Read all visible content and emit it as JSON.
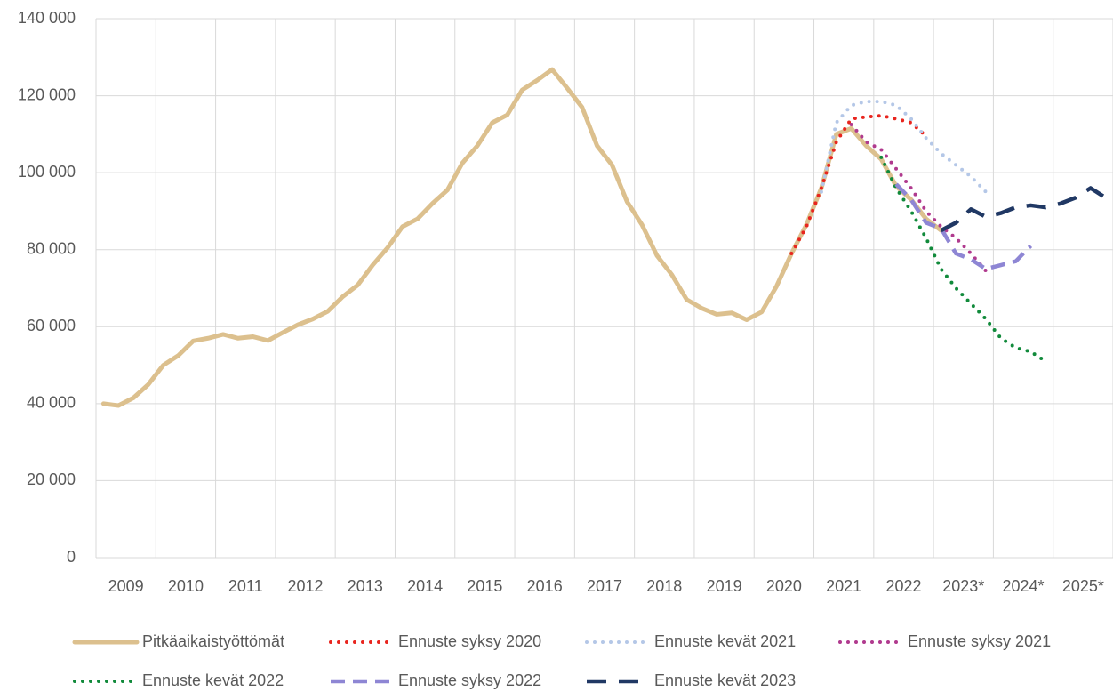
{
  "chart_data": {
    "type": "line",
    "x": [
      2009.125,
      2009.375,
      2009.625,
      2009.875,
      2010.125,
      2010.375,
      2010.625,
      2010.875,
      2011.125,
      2011.375,
      2011.625,
      2011.875,
      2012.125,
      2012.375,
      2012.625,
      2012.875,
      2013.125,
      2013.375,
      2013.625,
      2013.875,
      2014.125,
      2014.375,
      2014.625,
      2014.875,
      2015.125,
      2015.375,
      2015.625,
      2015.875,
      2016.125,
      2016.375,
      2016.625,
      2016.875,
      2017.125,
      2017.375,
      2017.625,
      2017.875,
      2018.125,
      2018.375,
      2018.625,
      2018.875,
      2019.125,
      2019.375,
      2019.625,
      2019.875,
      2020.125,
      2020.375,
      2020.625,
      2020.875,
      2021.125,
      2021.375,
      2021.625,
      2021.875,
      2022.125,
      2022.375,
      2022.625,
      2022.875,
      2023.125,
      2023.375,
      2023.625,
      2023.875,
      2024.125,
      2024.375,
      2024.625,
      2024.875,
      2025.125,
      2025.375,
      2025.625,
      2025.875
    ],
    "xlim": [
      2009,
      2026
    ],
    "xticks": [
      {
        "value": 2009.5,
        "label": "2009"
      },
      {
        "value": 2010.5,
        "label": "2010"
      },
      {
        "value": 2011.5,
        "label": "2011"
      },
      {
        "value": 2012.5,
        "label": "2012"
      },
      {
        "value": 2013.5,
        "label": "2013"
      },
      {
        "value": 2014.5,
        "label": "2014"
      },
      {
        "value": 2015.5,
        "label": "2015"
      },
      {
        "value": 2016.5,
        "label": "2016"
      },
      {
        "value": 2017.5,
        "label": "2017"
      },
      {
        "value": 2018.5,
        "label": "2018"
      },
      {
        "value": 2019.5,
        "label": "2019"
      },
      {
        "value": 2020.5,
        "label": "2020"
      },
      {
        "value": 2021.5,
        "label": "2021"
      },
      {
        "value": 2022.5,
        "label": "2022"
      },
      {
        "value": 2023.5,
        "label": "2023*"
      },
      {
        "value": 2024.5,
        "label": "2024*"
      },
      {
        "value": 2025.5,
        "label": "2025*"
      }
    ],
    "ylim": [
      0,
      140000
    ],
    "yticks": [
      0,
      {
        "value": 20000,
        "label": "20 000"
      },
      {
        "value": 40000,
        "label": "40 000"
      },
      {
        "value": 60000,
        "label": "60 000"
      },
      {
        "value": 80000,
        "label": "80 000"
      },
      {
        "value": 100000,
        "label": "100 000"
      },
      {
        "value": 120000,
        "label": "120 000"
      },
      {
        "value": 140000,
        "label": "140 000"
      }
    ],
    "grid": true,
    "legend": "bottom",
    "series": [
      {
        "name": "Pitkäaikaistyöttömät",
        "color": "#dcc08e",
        "style": "solid",
        "values": [
          40000,
          39500,
          41500,
          45000,
          50000,
          52500,
          56300,
          57000,
          58000,
          57000,
          57400,
          56400,
          58500,
          60500,
          62000,
          64000,
          67800,
          70800,
          76000,
          80500,
          86000,
          88000,
          92000,
          95500,
          102500,
          107000,
          113000,
          115000,
          121500,
          124000,
          126800,
          122000,
          117000,
          107000,
          102000,
          92500,
          86500,
          78500,
          73500,
          67000,
          64800,
          63200,
          63600,
          61800,
          63800,
          70500,
          79000,
          86500,
          96000,
          110000,
          111500,
          107000,
          103500,
          96500,
          93000,
          88000,
          85000,
          null,
          null,
          null,
          null,
          null,
          null,
          null,
          null,
          null,
          null,
          null
        ]
      },
      {
        "name": "Ennuste syksy 2020",
        "color": "#e8251e",
        "style": "dotted",
        "values": [
          null,
          null,
          null,
          null,
          null,
          null,
          null,
          null,
          null,
          null,
          null,
          null,
          null,
          null,
          null,
          null,
          null,
          null,
          null,
          null,
          null,
          null,
          null,
          null,
          null,
          null,
          null,
          null,
          null,
          null,
          null,
          null,
          null,
          null,
          null,
          null,
          null,
          null,
          null,
          null,
          null,
          null,
          null,
          null,
          null,
          null,
          79000,
          86000,
          96000,
          108000,
          114000,
          114500,
          114800,
          114000,
          113000,
          109500,
          null,
          null,
          null,
          null,
          null,
          null,
          null,
          null,
          null,
          null,
          null,
          null
        ]
      },
      {
        "name": "Ennuste kevät 2021",
        "color": "#b4c7e7",
        "style": "dotted",
        "values": [
          null,
          null,
          null,
          null,
          null,
          null,
          null,
          null,
          null,
          null,
          null,
          null,
          null,
          null,
          null,
          null,
          null,
          null,
          null,
          null,
          null,
          null,
          null,
          null,
          null,
          null,
          null,
          null,
          null,
          null,
          null,
          null,
          null,
          null,
          null,
          null,
          null,
          null,
          null,
          null,
          null,
          null,
          null,
          null,
          null,
          null,
          null,
          null,
          95000,
          113000,
          117500,
          118500,
          118500,
          117500,
          114000,
          109000,
          105000,
          102000,
          99000,
          95000,
          null,
          null,
          null,
          null,
          null,
          null,
          null,
          null
        ]
      },
      {
        "name": "Ennuste syksy 2021",
        "color": "#b03a8e",
        "style": "dotted",
        "values": [
          null,
          null,
          null,
          null,
          null,
          null,
          null,
          null,
          null,
          null,
          null,
          null,
          null,
          null,
          null,
          null,
          null,
          null,
          null,
          null,
          null,
          null,
          null,
          null,
          null,
          null,
          null,
          null,
          null,
          null,
          null,
          null,
          null,
          null,
          null,
          null,
          null,
          null,
          null,
          null,
          null,
          null,
          null,
          null,
          null,
          null,
          null,
          null,
          null,
          null,
          112500,
          108000,
          106000,
          101000,
          96000,
          90000,
          86000,
          83000,
          79000,
          74500,
          null,
          null,
          null,
          null,
          null,
          null,
          null,
          null
        ]
      },
      {
        "name": "Ennuste kevät 2022",
        "color": "#118a3b",
        "style": "dotted",
        "values": [
          null,
          null,
          null,
          null,
          null,
          null,
          null,
          null,
          null,
          null,
          null,
          null,
          null,
          null,
          null,
          null,
          null,
          null,
          null,
          null,
          null,
          null,
          null,
          null,
          null,
          null,
          null,
          null,
          null,
          null,
          null,
          null,
          null,
          null,
          null,
          null,
          null,
          null,
          null,
          null,
          null,
          null,
          null,
          null,
          null,
          null,
          null,
          null,
          null,
          null,
          null,
          null,
          104000,
          96000,
          90000,
          83000,
          75000,
          70000,
          66000,
          62000,
          57000,
          54500,
          53500,
          51000,
          null,
          null,
          null,
          null
        ]
      },
      {
        "name": "Ennuste syksy 2022",
        "color": "#8e86d4",
        "style": "dashed",
        "values": [
          null,
          null,
          null,
          null,
          null,
          null,
          null,
          null,
          null,
          null,
          null,
          null,
          null,
          null,
          null,
          null,
          null,
          null,
          null,
          null,
          null,
          null,
          null,
          null,
          null,
          null,
          null,
          null,
          null,
          null,
          null,
          null,
          null,
          null,
          null,
          null,
          null,
          null,
          null,
          null,
          null,
          null,
          null,
          null,
          null,
          null,
          null,
          null,
          null,
          null,
          null,
          null,
          null,
          97000,
          93000,
          87000,
          85500,
          79000,
          77500,
          75000,
          76000,
          77000,
          81000,
          null,
          null,
          null,
          null,
          null
        ]
      },
      {
        "name": "Ennuste kevät 2023",
        "color": "#203864",
        "style": "longdash",
        "values": [
          null,
          null,
          null,
          null,
          null,
          null,
          null,
          null,
          null,
          null,
          null,
          null,
          null,
          null,
          null,
          null,
          null,
          null,
          null,
          null,
          null,
          null,
          null,
          null,
          null,
          null,
          null,
          null,
          null,
          null,
          null,
          null,
          null,
          null,
          null,
          null,
          null,
          null,
          null,
          null,
          null,
          null,
          null,
          null,
          null,
          null,
          null,
          null,
          null,
          null,
          null,
          null,
          null,
          null,
          null,
          null,
          85000,
          87000,
          90500,
          88500,
          89500,
          91000,
          91500,
          91000,
          92000,
          93500,
          96000,
          93500
        ]
      }
    ]
  }
}
